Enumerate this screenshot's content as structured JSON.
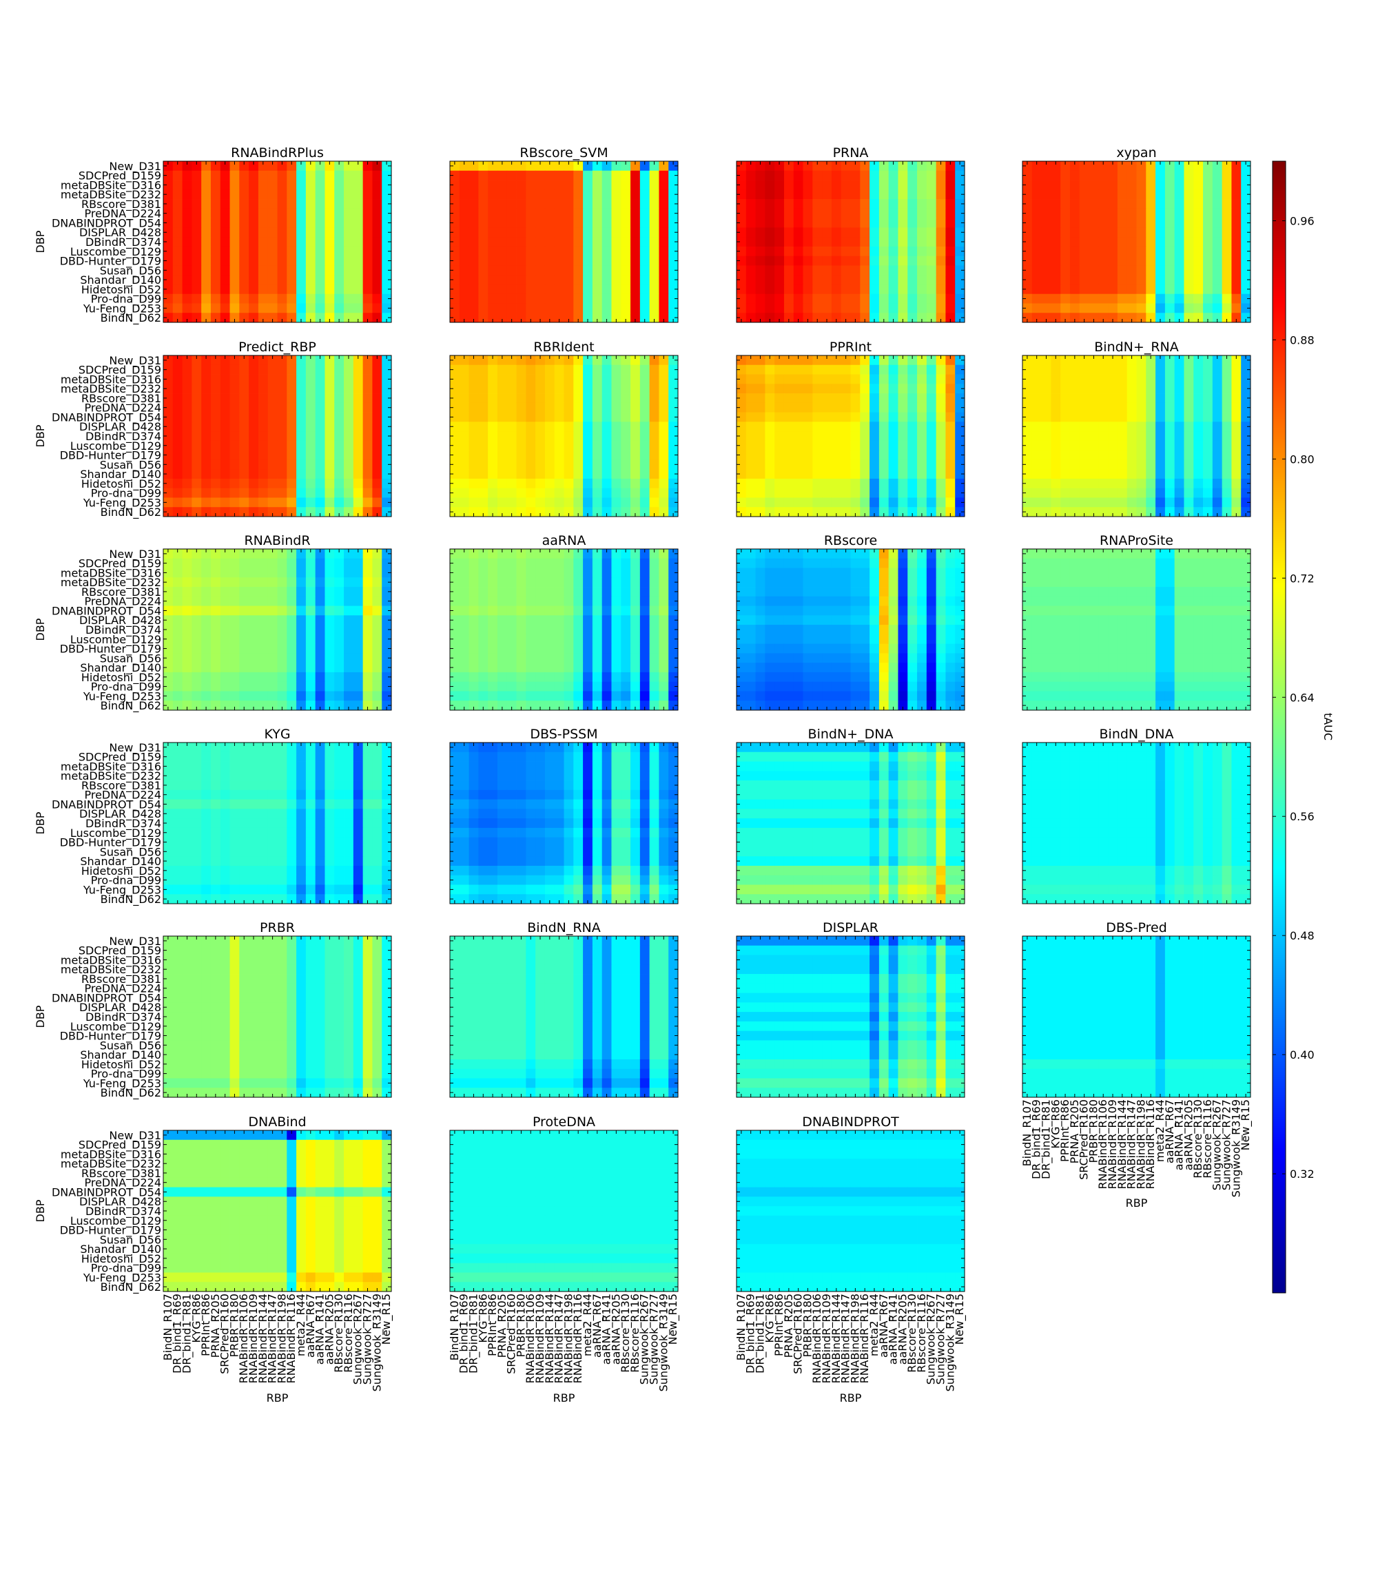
{
  "chart_data": {
    "type": "heatmap",
    "dbp_labels": [
      "New_D31",
      "SDCPred_D159",
      "metaDBSite_D316",
      "metaDBSite_D232",
      "RBscore_D381",
      "PreDNA_D224",
      "DNABINDPROT_D54",
      "DISPLAR_D428",
      "DBindR_D374",
      "Luscombe_D129",
      "DBD-Hunter_D179",
      "Susan_D56",
      "Shandar_D140",
      "Hidetoshi_D52",
      "Pro-dna_D99",
      "Yu-Feng_D253",
      "BindN_D62"
    ],
    "rbp_labels": [
      "BindN_R107",
      "DR_bind1_R69",
      "DR_bind1_R81",
      "KYG_R86",
      "PPRInt_R86",
      "PRNA_R205",
      "SRCPred_R160",
      "PRBR_R180",
      "RNABindR_R106",
      "RNABindR_R109",
      "RNABindR_R144",
      "RNABindR_R147",
      "RNABindR_R198",
      "RNABindR_R116",
      "meta2_R44",
      "aaRNA_R67",
      "aaRNA_R141",
      "aaRNA_R205",
      "RBscore_R130",
      "RBscore_R116",
      "Sungwook_R267",
      "Sungwook_R727",
      "Sungwook_R3149",
      "New_R15"
    ],
    "xlabel": "RBP",
    "ylabel": "DBP",
    "colorbar": {
      "label": "tAUC",
      "min": 0.24,
      "max": 1.0,
      "ticks": [
        0.32,
        0.4,
        0.48,
        0.56,
        0.64,
        0.72,
        0.8,
        0.88,
        0.96
      ],
      "tick_labels": [
        "0.32",
        "0.40",
        "0.48",
        "0.56",
        "0.64",
        "0.72",
        "0.80",
        "0.88",
        "0.96"
      ],
      "colormap": "jet"
    },
    "panels": [
      {
        "title": "RNABindRPlus",
        "base": 0.84,
        "col": [
          0.05,
          0.03,
          0.06,
          0.05,
          -0.03,
          0.02,
          0.06,
          -0.03,
          0.02,
          0.04,
          0.0,
          0.0,
          0.02,
          -0.01,
          -0.29,
          -0.16,
          -0.23,
          -0.13,
          -0.23,
          -0.18,
          -0.18,
          0.05,
          0.08,
          -0.32
        ],
        "row": [
          0.02,
          0.0,
          0.0,
          0.0,
          0.0,
          0.0,
          0.0,
          0.0,
          0.0,
          0.0,
          0.0,
          0.0,
          0.0,
          0.0,
          -0.02,
          -0.03,
          0.0
        ]
      },
      {
        "title": "RBscore_SVM",
        "base": 0.86,
        "col": [
          0.01,
          0.02,
          0.02,
          0.0,
          0.01,
          0.01,
          0.01,
          0.01,
          0.0,
          0.0,
          0.0,
          0.0,
          0.0,
          -0.03,
          -0.29,
          -0.21,
          -0.26,
          -0.16,
          -0.15,
          0.06,
          -0.33,
          -0.16,
          0.04,
          -0.34
        ],
        "row": [
          -0.12,
          0.0,
          0.0,
          0.0,
          0.0,
          0.0,
          0.0,
          0.0,
          0.0,
          0.0,
          0.0,
          0.0,
          0.0,
          0.0,
          0.0,
          0.0,
          0.0
        ]
      },
      {
        "title": "PRNA",
        "base": 0.86,
        "col": [
          0.03,
          0.05,
          0.06,
          0.07,
          0.06,
          0.02,
          0.04,
          0.02,
          0.0,
          0.0,
          0.01,
          0.0,
          0.0,
          -0.03,
          -0.33,
          -0.23,
          -0.29,
          -0.2,
          -0.28,
          -0.23,
          -0.22,
          -0.06,
          0.05,
          -0.4
        ],
        "row": [
          0.0,
          0.01,
          0.01,
          0.01,
          0.0,
          0.0,
          0.0,
          0.01,
          0.01,
          0.0,
          0.01,
          0.0,
          0.0,
          0.0,
          -0.01,
          -0.01,
          0.0
        ]
      },
      {
        "title": "xypan",
        "base": 0.86,
        "col": [
          0.01,
          0.02,
          0.02,
          0.02,
          0.0,
          0.01,
          0.0,
          0.0,
          0.0,
          0.0,
          -0.02,
          -0.02,
          -0.03,
          -0.1,
          -0.33,
          -0.26,
          -0.31,
          -0.16,
          -0.15,
          -0.24,
          -0.27,
          -0.12,
          0.02,
          -0.34
        ],
        "row": [
          0.0,
          0.0,
          0.0,
          0.0,
          0.0,
          0.0,
          0.0,
          0.0,
          0.0,
          0.0,
          0.0,
          0.0,
          0.0,
          0.0,
          -0.04,
          -0.06,
          -0.02
        ]
      },
      {
        "title": "Predict_RBP",
        "base": 0.86,
        "col": [
          0.02,
          0.03,
          0.02,
          0.0,
          0.02,
          0.01,
          0.02,
          0.01,
          0.0,
          0.02,
          0.01,
          0.0,
          0.0,
          -0.03,
          -0.3,
          -0.25,
          -0.29,
          -0.18,
          -0.26,
          -0.21,
          -0.12,
          -0.03,
          0.03,
          -0.36
        ],
        "row": [
          0.0,
          0.0,
          0.0,
          0.0,
          0.0,
          0.0,
          0.0,
          0.0,
          0.0,
          0.0,
          0.0,
          0.0,
          0.0,
          -0.01,
          -0.02,
          -0.05,
          -0.01
        ]
      },
      {
        "title": "RBRIdent",
        "base": 0.72,
        "col": [
          0.01,
          0.01,
          0.02,
          0.02,
          0.0,
          0.01,
          0.01,
          0.02,
          0.03,
          0.02,
          0.01,
          0.0,
          0.01,
          -0.03,
          -0.2,
          -0.12,
          -0.18,
          -0.12,
          -0.1,
          -0.06,
          -0.12,
          0.04,
          0.0,
          -0.2
        ],
        "row": [
          0.04,
          0.02,
          0.02,
          0.02,
          0.02,
          0.02,
          0.02,
          0.0,
          0.0,
          0.0,
          0.0,
          0.0,
          0.0,
          -0.02,
          -0.03,
          -0.04,
          -0.03
        ]
      },
      {
        "title": "PPRInt",
        "base": 0.72,
        "col": [
          0.03,
          0.02,
          0.02,
          0.0,
          0.01,
          0.01,
          0.01,
          0.01,
          0.0,
          0.0,
          0.0,
          0.0,
          -0.01,
          -0.05,
          -0.25,
          -0.12,
          -0.2,
          -0.12,
          -0.17,
          -0.1,
          -0.18,
          -0.05,
          0.04,
          -0.3
        ],
        "row": [
          0.06,
          0.02,
          0.03,
          0.04,
          0.03,
          0.03,
          0.02,
          0.0,
          0.0,
          0.0,
          0.0,
          0.0,
          0.0,
          -0.03,
          -0.03,
          -0.05,
          -0.03
        ]
      },
      {
        "title": "BindN+_RNA",
        "base": 0.71,
        "col": [
          0.0,
          0.0,
          0.0,
          0.01,
          0.0,
          0.0,
          0.0,
          0.0,
          0.0,
          0.0,
          0.0,
          -0.02,
          -0.03,
          -0.08,
          -0.25,
          -0.16,
          -0.22,
          -0.12,
          -0.18,
          -0.16,
          -0.24,
          -0.12,
          -0.02,
          -0.28
        ],
        "row": [
          0.02,
          0.02,
          0.02,
          0.02,
          0.02,
          0.02,
          0.02,
          0.0,
          0.0,
          0.0,
          0.0,
          0.0,
          0.0,
          -0.02,
          -0.03,
          -0.05,
          -0.03
        ]
      },
      {
        "title": "RNABindR",
        "base": 0.64,
        "col": [
          0.02,
          0.01,
          0.02,
          0.01,
          0.0,
          0.01,
          0.0,
          0.0,
          -0.01,
          -0.01,
          -0.01,
          -0.01,
          -0.02,
          -0.05,
          -0.18,
          -0.1,
          -0.21,
          -0.12,
          -0.13,
          -0.16,
          -0.16,
          0.05,
          0.02,
          -0.2
        ],
        "row": [
          0.02,
          0.01,
          0.01,
          0.02,
          0.01,
          0.01,
          0.04,
          0.0,
          0.0,
          0.0,
          0.0,
          0.0,
          0.0,
          -0.02,
          -0.02,
          -0.04,
          -0.02
        ]
      },
      {
        "title": "aaRNA",
        "base": 0.62,
        "col": [
          0.0,
          0.0,
          0.01,
          0.0,
          0.01,
          0.0,
          0.0,
          0.01,
          0.0,
          0.0,
          0.0,
          0.0,
          -0.01,
          -0.05,
          -0.19,
          -0.08,
          -0.21,
          -0.1,
          -0.12,
          -0.06,
          -0.23,
          -0.03,
          0.01,
          -0.21
        ],
        "row": [
          0.02,
          0.01,
          0.01,
          0.01,
          0.01,
          0.01,
          0.02,
          0.0,
          0.0,
          0.0,
          0.0,
          0.0,
          0.0,
          -0.02,
          -0.03,
          -0.05,
          -0.02
        ]
      },
      {
        "title": "RBscore",
        "base": 0.47,
        "col": [
          0.0,
          0.0,
          -0.01,
          -0.02,
          -0.02,
          -0.02,
          -0.02,
          -0.01,
          -0.01,
          -0.01,
          -0.01,
          -0.01,
          0.0,
          0.0,
          0.05,
          0.28,
          0.18,
          -0.1,
          0.09,
          0.05,
          -0.1,
          0.08,
          0.05,
          0.04
        ],
        "row": [
          0.03,
          0.02,
          0.01,
          0.01,
          0.01,
          0.0,
          0.01,
          0.02,
          0.0,
          0.0,
          -0.01,
          -0.02,
          -0.03,
          -0.04,
          -0.05,
          -0.06,
          -0.05
        ]
      },
      {
        "title": "RNAProSite",
        "base": 0.6,
        "col": [
          0.0,
          0.0,
          0.0,
          0.0,
          0.0,
          0.0,
          0.0,
          0.0,
          0.0,
          0.0,
          0.0,
          0.0,
          0.0,
          0.0,
          -0.1,
          -0.1,
          0.0,
          0.0,
          0.0,
          0.0,
          0.0,
          0.0,
          0.0,
          0.0
        ],
        "row": [
          0.02,
          0.01,
          0.01,
          0.01,
          0.0,
          0.0,
          0.01,
          0.0,
          0.0,
          0.0,
          0.0,
          0.0,
          0.0,
          -0.01,
          -0.02,
          -0.03,
          -0.02
        ]
      },
      {
        "title": "KYG",
        "base": 0.56,
        "col": [
          0.0,
          0.0,
          0.0,
          0.0,
          -0.01,
          0.0,
          -0.01,
          0.0,
          0.0,
          0.0,
          0.0,
          0.0,
          0.0,
          -0.03,
          -0.1,
          -0.03,
          -0.12,
          -0.02,
          -0.03,
          -0.03,
          -0.17,
          0.0,
          0.0,
          -0.05
        ],
        "row": [
          0.01,
          0.01,
          0.01,
          0.01,
          0.01,
          0.0,
          0.02,
          0.0,
          0.0,
          0.0,
          0.0,
          0.0,
          0.0,
          -0.01,
          -0.01,
          -0.03,
          -0.01
        ]
      },
      {
        "title": "DBS-PSSM",
        "base": 0.44,
        "col": [
          0.0,
          0.0,
          -0.02,
          -0.03,
          -0.03,
          -0.02,
          -0.02,
          -0.02,
          -0.01,
          -0.01,
          0.0,
          0.0,
          0.03,
          0.06,
          -0.09,
          0.08,
          -0.02,
          0.12,
          0.12,
          0.06,
          -0.04,
          0.09,
          0.0,
          -0.02
        ],
        "row": [
          0.0,
          0.01,
          0.01,
          0.01,
          0.01,
          0.0,
          0.02,
          0.01,
          0.0,
          0.02,
          0.01,
          0.01,
          0.01,
          0.04,
          0.06,
          0.09,
          0.07
        ]
      },
      {
        "title": "BindN+_DNA",
        "base": 0.55,
        "col": [
          0.0,
          0.0,
          0.0,
          0.0,
          0.0,
          0.0,
          0.0,
          0.0,
          0.0,
          0.0,
          0.0,
          0.0,
          0.0,
          0.0,
          -0.04,
          0.04,
          -0.04,
          0.04,
          0.06,
          0.05,
          0.02,
          0.14,
          0.0,
          0.0
        ],
        "row": [
          -0.06,
          0.0,
          -0.02,
          -0.03,
          0.0,
          0.0,
          -0.02,
          0.0,
          -0.03,
          0.0,
          0.0,
          0.0,
          -0.02,
          0.06,
          0.05,
          0.09,
          0.06
        ]
      },
      {
        "title": "BindN_DNA",
        "base": 0.53,
        "col": [
          0.0,
          0.0,
          0.0,
          0.0,
          0.0,
          0.0,
          0.0,
          0.0,
          0.0,
          0.0,
          0.0,
          0.0,
          0.0,
          0.0,
          -0.05,
          -0.01,
          0.01,
          0.0,
          0.02,
          0.0,
          0.01,
          0.04,
          0.0,
          0.0
        ],
        "row": [
          0.0,
          0.0,
          0.0,
          0.0,
          0.0,
          0.0,
          0.0,
          0.0,
          0.0,
          0.0,
          0.0,
          0.0,
          0.0,
          0.02,
          0.02,
          0.03,
          0.02
        ]
      },
      {
        "title": "PRBR",
        "base": 0.63,
        "col": [
          0.0,
          0.0,
          0.0,
          0.0,
          0.0,
          0.0,
          0.0,
          0.06,
          0.0,
          0.0,
          0.0,
          0.0,
          0.0,
          -0.03,
          -0.12,
          -0.09,
          -0.09,
          -0.06,
          -0.06,
          -0.05,
          -0.09,
          0.05,
          0.0,
          -0.1
        ],
        "row": [
          0.0,
          0.0,
          0.0,
          0.0,
          0.0,
          0.0,
          0.0,
          0.0,
          0.0,
          0.0,
          0.0,
          0.0,
          0.0,
          0.0,
          0.0,
          -0.02,
          0.0
        ]
      },
      {
        "title": "BindN_RNA",
        "base": 0.57,
        "col": [
          0.0,
          0.0,
          0.0,
          0.0,
          0.0,
          0.0,
          0.0,
          0.0,
          -0.03,
          0.0,
          0.0,
          0.0,
          0.0,
          -0.02,
          -0.14,
          -0.06,
          -0.12,
          -0.05,
          -0.05,
          -0.05,
          -0.16,
          0.0,
          0.0,
          -0.1
        ],
        "row": [
          0.0,
          0.0,
          0.0,
          0.0,
          0.0,
          0.0,
          0.0,
          0.0,
          0.0,
          0.0,
          0.0,
          0.0,
          0.0,
          -0.02,
          -0.03,
          -0.05,
          -0.02
        ]
      },
      {
        "title": "DISPLAR",
        "base": 0.53,
        "col": [
          0.0,
          0.0,
          0.0,
          0.0,
          0.0,
          0.0,
          0.0,
          0.0,
          0.0,
          0.0,
          0.0,
          0.0,
          0.0,
          0.0,
          -0.08,
          0.04,
          -0.05,
          0.05,
          0.06,
          0.05,
          0.0,
          0.12,
          0.0,
          0.0
        ],
        "row": [
          -0.09,
          -0.02,
          -0.03,
          -0.03,
          0.0,
          0.0,
          -0.02,
          0.0,
          -0.03,
          0.0,
          -0.03,
          0.0,
          0.0,
          0.03,
          0.02,
          0.05,
          0.03
        ]
      },
      {
        "title": "DBS-Pred",
        "base": 0.52,
        "col": [
          0.0,
          0.0,
          0.0,
          0.0,
          0.0,
          0.0,
          0.0,
          0.0,
          0.0,
          0.0,
          0.0,
          0.0,
          0.0,
          0.0,
          -0.05,
          0.0,
          0.0,
          0.0,
          0.0,
          0.0,
          0.0,
          0.0,
          0.0,
          0.0
        ],
        "row": [
          0.0,
          0.0,
          0.0,
          0.0,
          0.0,
          0.0,
          0.0,
          0.0,
          0.0,
          0.0,
          0.0,
          0.0,
          0.0,
          0.03,
          0.02,
          0.02,
          0.02
        ]
      },
      {
        "title": "DNABind",
        "base": 0.64,
        "col": [
          0.0,
          0.0,
          0.0,
          0.0,
          0.0,
          0.0,
          0.0,
          0.0,
          0.0,
          0.0,
          0.0,
          0.0,
          0.0,
          -0.14,
          0.06,
          0.08,
          0.06,
          0.06,
          0.03,
          0.06,
          0.06,
          0.08,
          0.08,
          0.0
        ],
        "row": [
          -0.18,
          0.0,
          0.0,
          0.0,
          0.0,
          0.0,
          -0.1,
          0.0,
          0.0,
          0.0,
          0.0,
          0.0,
          0.0,
          0.0,
          0.0,
          0.04,
          0.02
        ]
      },
      {
        "title": "ProteDNA",
        "base": 0.54,
        "col": [
          0.0,
          0.0,
          0.0,
          0.0,
          0.0,
          0.0,
          0.0,
          0.0,
          0.0,
          0.0,
          0.0,
          0.0,
          0.0,
          0.0,
          0.0,
          0.0,
          0.0,
          0.0,
          0.0,
          0.0,
          0.0,
          0.0,
          0.0,
          0.0
        ],
        "row": [
          0.0,
          0.0,
          0.0,
          0.0,
          0.0,
          0.0,
          0.0,
          0.0,
          0.0,
          0.0,
          0.0,
          0.0,
          0.01,
          0.0,
          0.02,
          0.04,
          0.02
        ]
      },
      {
        "title": "DNABINDPROT",
        "base": 0.51,
        "col": [
          0.0,
          0.0,
          0.0,
          0.0,
          0.0,
          0.0,
          0.0,
          0.0,
          0.0,
          0.0,
          0.0,
          0.0,
          0.0,
          0.0,
          0.0,
          0.0,
          0.0,
          0.0,
          0.0,
          0.0,
          0.0,
          0.0,
          0.0,
          0.0
        ],
        "row": [
          0.0,
          0.01,
          0.01,
          0.0,
          0.0,
          0.0,
          -0.02,
          0.0,
          0.01,
          0.0,
          0.0,
          0.0,
          0.01,
          0.01,
          0.01,
          0.02,
          0.02
        ]
      }
    ]
  }
}
